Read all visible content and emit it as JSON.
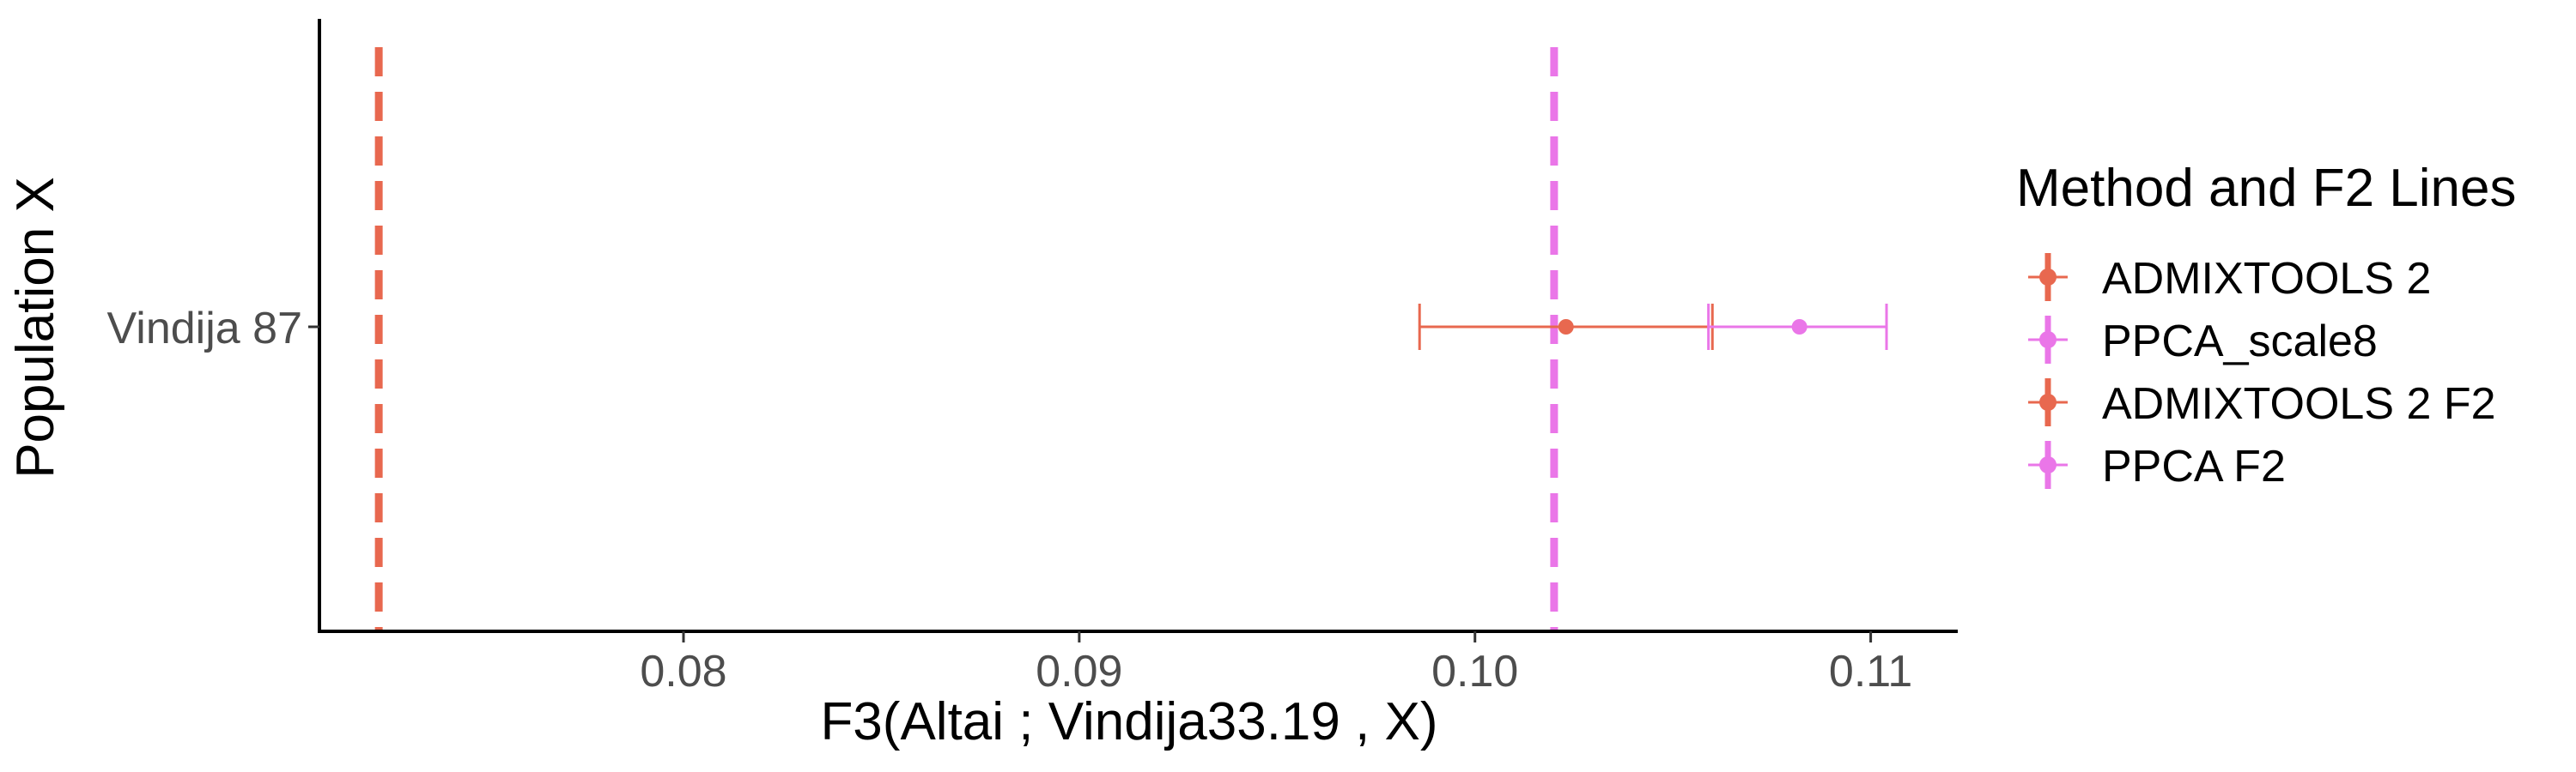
{
  "chart_data": {
    "type": "scatter",
    "xlabel": "F3(Altai ; Vindija33.19 , X)",
    "ylabel": "Population X",
    "xlim": [
      0.0708,
      0.1122
    ],
    "x_ticks": [
      0.08,
      0.09,
      0.1,
      0.11
    ],
    "x_tick_labels": [
      "0.08",
      "0.09",
      "0.10",
      "0.11"
    ],
    "categories": [
      "Vindija 87"
    ],
    "grid": false,
    "legend_position": "right",
    "legend": {
      "title": "Method and F2 Lines",
      "entries": [
        {
          "label": "ADMIXTOOLS 2",
          "color": "#e8684f"
        },
        {
          "label": "PPCA_scale8",
          "color": "#ea76e8"
        },
        {
          "label": "ADMIXTOOLS 2 F2",
          "color": "#e8684f"
        },
        {
          "label": "PPCA F2",
          "color": "#ea76e8"
        }
      ]
    },
    "series": [
      {
        "name": "ADMIXTOOLS 2",
        "category": "Vindija 87",
        "x": 0.1023,
        "ci": [
          0.0986,
          0.106
        ],
        "color": "#e8684f"
      },
      {
        "name": "PPCA_scale8",
        "category": "Vindija 87",
        "x": 0.1082,
        "ci": [
          0.1059,
          0.1104
        ],
        "color": "#ea76e8"
      }
    ],
    "reference_lines": [
      {
        "name": "ADMIXTOOLS 2 F2",
        "x": 0.0723,
        "color": "#e8684f",
        "style": "dashed"
      },
      {
        "name": "PPCA F2",
        "x": 0.102,
        "color": "#ea76e8",
        "style": "dashed"
      }
    ]
  }
}
